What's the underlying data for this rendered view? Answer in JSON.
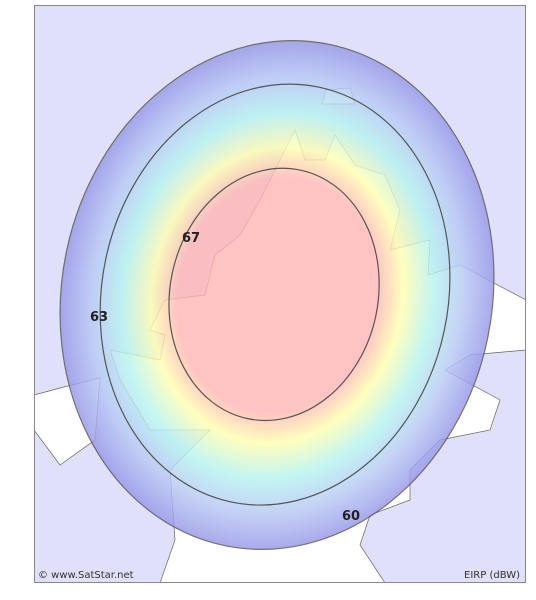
{
  "map": {
    "contours": [
      {
        "value": 67
      },
      {
        "value": 63
      },
      {
        "value": 60
      }
    ],
    "credit": "© www.SatStar.net",
    "legend": "EIRP (dBW)"
  }
}
